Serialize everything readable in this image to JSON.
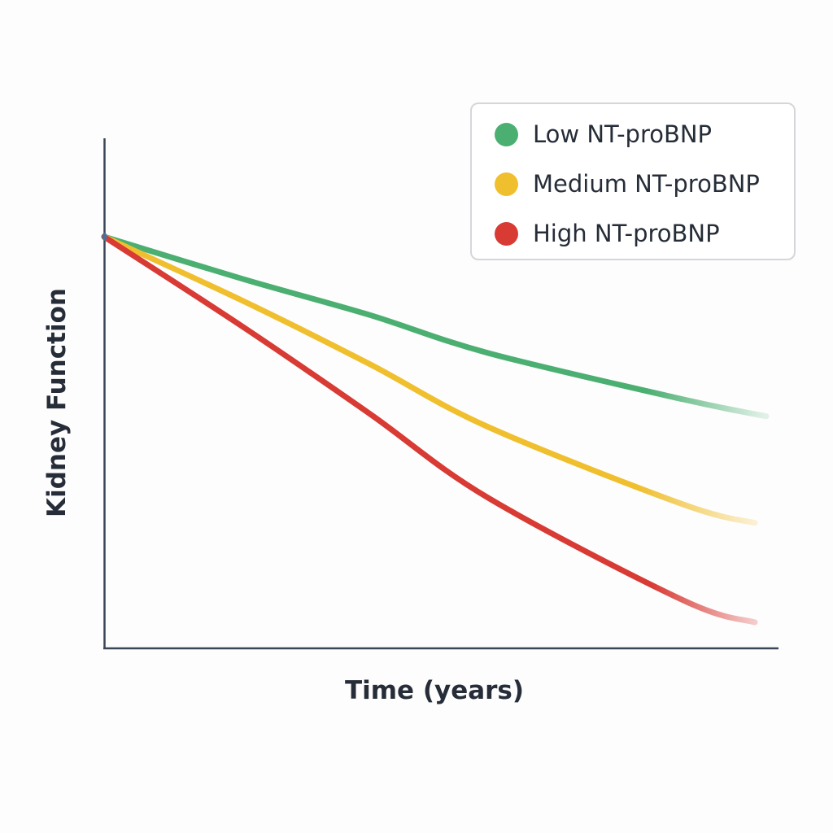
{
  "chart_data": {
    "type": "line",
    "title": "",
    "xlabel": "Time (years)",
    "ylabel": "Kidney Function",
    "x_ticks": [],
    "y_ticks": [],
    "grid": false,
    "legend_position": "upper right",
    "xlim": [
      0,
      10
    ],
    "ylim": [
      0,
      100
    ],
    "x": [
      0,
      2.1,
      4.0,
      5.8,
      8.75,
      10
    ],
    "series": [
      {
        "name": "Low NT-proBNP",
        "color": "#4caf72",
        "values": [
          80.7,
          72.4,
          65.4,
          57.9,
          48.8,
          45.5
        ]
      },
      {
        "name": "Medium NT-proBNP",
        "color": "#f0bf2e",
        "values": [
          80.7,
          68.1,
          55.8,
          43.4,
          28.2,
          24.6
        ]
      },
      {
        "name": "High NT-proBNP",
        "color": "#d83a34",
        "values": [
          80.7,
          63.0,
          46.1,
          29.5,
          9.4,
          5.1
        ]
      }
    ],
    "annotations": []
  },
  "axes": {
    "x_title": "Time (years)",
    "y_title": "Kidney Function",
    "color": "#3a4557"
  },
  "legend": {
    "items": [
      {
        "label": "Low NT-proBNP",
        "color": "#4caf72"
      },
      {
        "label": "Medium NT-proBNP",
        "color": "#f0bf2e"
      },
      {
        "label": "High NT-proBNP",
        "color": "#d83a34"
      }
    ]
  }
}
